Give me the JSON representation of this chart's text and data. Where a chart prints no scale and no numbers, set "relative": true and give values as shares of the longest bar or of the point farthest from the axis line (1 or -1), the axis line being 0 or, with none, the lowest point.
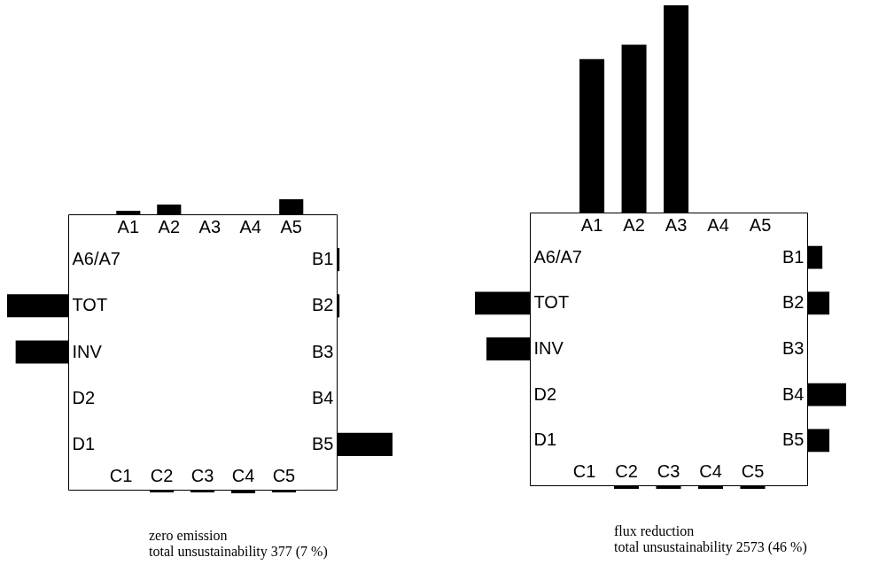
{
  "chart_data": [
    {
      "type": "bar",
      "relative": true,
      "color": "#000000",
      "categories": [
        "A1",
        "A2",
        "A3",
        "A4",
        "A5"
      ],
      "values": [
        0.24,
        0.65,
        0,
        0,
        1
      ]
    },
    {
      "type": "bar",
      "relative": true,
      "color": "#000000",
      "orientation": "horizontal",
      "categories": [
        "A6/A7",
        "TOT",
        "INV",
        "D2",
        "D1"
      ],
      "values": [
        0,
        -1,
        -0.86,
        0,
        0
      ]
    },
    {
      "type": "bar",
      "relative": true,
      "color": "#000000",
      "orientation": "horizontal",
      "categories": [
        "B1",
        "B2",
        "B3",
        "B4",
        "B5"
      ],
      "values": [
        0.05,
        0.05,
        0,
        0,
        1
      ]
    },
    {
      "type": "bar",
      "relative": true,
      "color": "#000000",
      "categories": [
        "C1",
        "C2",
        "C3",
        "C4",
        "C5"
      ],
      "values": [
        0,
        -0.75,
        -0.75,
        -1,
        -0.75
      ],
      "annotations": [
        "zero emission",
        "total unsustainability 377 (7 %)"
      ]
    },
    {
      "type": "bar",
      "relative": true,
      "color": "#000000",
      "categories": [
        "A1",
        "A2",
        "A3",
        "A4",
        "A5"
      ],
      "values": [
        0.74,
        0.81,
        1,
        0,
        0
      ]
    },
    {
      "type": "bar",
      "relative": true,
      "color": "#000000",
      "orientation": "horizontal",
      "categories": [
        "A6/A7",
        "TOT",
        "INV",
        "D2",
        "D1"
      ],
      "values": [
        0,
        -1,
        -0.79,
        0,
        0
      ]
    },
    {
      "type": "bar",
      "relative": true,
      "color": "#000000",
      "orientation": "horizontal",
      "categories": [
        "B1",
        "B2",
        "B3",
        "B4",
        "B5"
      ],
      "values": [
        0.39,
        0.57,
        0,
        1,
        0.57
      ]
    },
    {
      "type": "bar",
      "relative": true,
      "color": "#000000",
      "categories": [
        "C1",
        "C2",
        "C3",
        "C4",
        "C5"
      ],
      "values": [
        0,
        -1,
        -1,
        -1,
        -1
      ],
      "annotations": [
        "flux reduction",
        "total unsustainability 2573 (46 %)"
      ]
    }
  ]
}
